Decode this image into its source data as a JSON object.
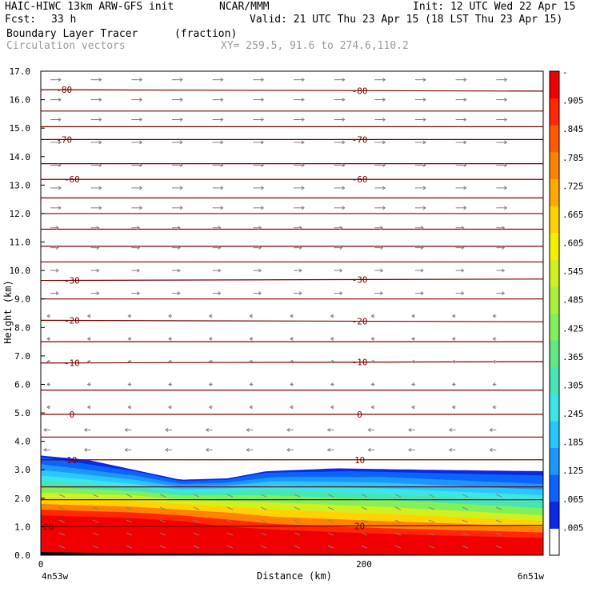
{
  "header": {
    "model": "HAIC-HIWC 13km ARW-GFS init",
    "org": "NCAR/MMM",
    "init": "Init: 12 UTC Wed 22 Apr 15",
    "fcst_label": "Fcst:",
    "fcst_value": "33 h",
    "valid": "Valid: 21 UTC Thu 23 Apr 15 (18 LST Thu 23 Apr 15)",
    "field": "Boundary Layer Tracer",
    "field_units": "(fraction)",
    "overlay": "Circulation vectors",
    "xy": "XY= 259.5, 91.6 to 274.6,110.2"
  },
  "x_axis": {
    "title": "Distance (km)",
    "left_endpoint": "4n53w",
    "right_endpoint": "6n51w",
    "ticks": [
      {
        "label": "0",
        "value": 0
      },
      {
        "label": "200",
        "value": 200
      }
    ]
  },
  "colors": {
    "contour_line": "#7a0000",
    "vector": "#808080",
    "palette": [
      "#ffffff",
      "#0a28e6",
      "#0a64ff",
      "#1e96ff",
      "#28c8ff",
      "#3ce6e6",
      "#46e6b4",
      "#64e682",
      "#82f05a",
      "#aaf03c",
      "#d2f01e",
      "#f5f000",
      "#ffd200",
      "#ffaa00",
      "#ff8200",
      "#ff5a00",
      "#ff2800",
      "#f00000"
    ]
  },
  "chart_data": {
    "type": "heatmap",
    "title": "Boundary Layer Tracer",
    "units": "(fraction)",
    "xlabel": "Distance (km)",
    "ylabel": "Height (km)",
    "xlim": [
      0,
      323
    ],
    "ylim": [
      0,
      17
    ],
    "y_ticks": [
      "0.0",
      "1.0",
      "2.0",
      "3.0",
      "4.0",
      "5.0",
      "6.0",
      "7.0",
      "8.0",
      "9.0",
      "10.0",
      "11.0",
      "12.0",
      "13.0",
      "14.0",
      "15.0",
      "16.0",
      "17.0"
    ],
    "colorbar_labels": [
      ".005",
      ".065",
      ".125",
      ".185",
      ".245",
      ".305",
      ".365",
      ".425",
      ".485",
      ".545",
      ".605",
      ".665",
      ".725",
      ".785",
      ".845",
      ".905",
      "-"
    ],
    "tracer_top_km": [
      [
        0,
        3.5
      ],
      [
        30,
        3.35
      ],
      [
        60,
        3.0
      ],
      [
        90,
        2.65
      ],
      [
        120,
        2.7
      ],
      [
        145,
        2.95
      ],
      [
        190,
        3.05
      ],
      [
        250,
        3.0
      ],
      [
        323,
        2.95
      ]
    ],
    "tracer_layers": [
      {
        "value": 0.065,
        "top_km": [
          [
            0,
            3.45
          ],
          [
            60,
            2.95
          ],
          [
            90,
            2.6
          ],
          [
            120,
            2.65
          ],
          [
            145,
            2.9
          ],
          [
            200,
            2.95
          ],
          [
            323,
            2.8
          ]
        ]
      },
      {
        "value": 0.125,
        "top_km": [
          [
            0,
            3.2
          ],
          [
            60,
            2.8
          ],
          [
            90,
            2.5
          ],
          [
            120,
            2.55
          ],
          [
            150,
            2.75
          ],
          [
            220,
            2.75
          ],
          [
            323,
            2.5
          ]
        ]
      },
      {
        "value": 0.185,
        "top_km": [
          [
            0,
            3.0
          ],
          [
            60,
            2.65
          ],
          [
            90,
            2.4
          ],
          [
            120,
            2.45
          ],
          [
            150,
            2.6
          ],
          [
            220,
            2.55
          ],
          [
            323,
            2.3
          ]
        ]
      },
      {
        "value": 0.245,
        "top_km": [
          [
            0,
            2.8
          ],
          [
            60,
            2.5
          ],
          [
            90,
            2.3
          ],
          [
            120,
            2.35
          ],
          [
            150,
            2.45
          ],
          [
            220,
            2.35
          ],
          [
            323,
            2.1
          ]
        ]
      },
      {
        "value": 0.305,
        "top_km": [
          [
            0,
            2.6
          ],
          [
            60,
            2.4
          ],
          [
            90,
            2.2
          ],
          [
            120,
            2.25
          ],
          [
            150,
            2.3
          ],
          [
            220,
            2.15
          ],
          [
            323,
            1.9
          ]
        ]
      },
      {
        "value": 0.425,
        "top_km": [
          [
            0,
            2.4
          ],
          [
            60,
            2.25
          ],
          [
            90,
            2.1
          ],
          [
            120,
            2.1
          ],
          [
            150,
            2.1
          ],
          [
            220,
            1.95
          ],
          [
            323,
            1.65
          ]
        ]
      },
      {
        "value": 0.545,
        "top_km": [
          [
            0,
            2.2
          ],
          [
            60,
            2.1
          ],
          [
            90,
            1.95
          ],
          [
            120,
            1.9
          ],
          [
            150,
            1.85
          ],
          [
            220,
            1.7
          ],
          [
            323,
            1.4
          ]
        ]
      },
      {
        "value": 0.665,
        "top_km": [
          [
            0,
            2.0
          ],
          [
            60,
            1.9
          ],
          [
            90,
            1.8
          ],
          [
            120,
            1.7
          ],
          [
            150,
            1.6
          ],
          [
            220,
            1.45
          ],
          [
            323,
            1.2
          ]
        ]
      },
      {
        "value": 0.785,
        "top_km": [
          [
            0,
            1.8
          ],
          [
            60,
            1.7
          ],
          [
            90,
            1.6
          ],
          [
            120,
            1.5
          ],
          [
            150,
            1.35
          ],
          [
            220,
            1.2
          ],
          [
            323,
            1.0
          ]
        ]
      },
      {
        "value": 0.905,
        "top_km": [
          [
            0,
            1.6
          ],
          [
            60,
            1.5
          ],
          [
            90,
            1.4
          ],
          [
            120,
            1.25
          ],
          [
            150,
            1.1
          ],
          [
            220,
            0.95
          ],
          [
            323,
            0.8
          ]
        ]
      },
      {
        "value": 0.965,
        "top_km": [
          [
            0,
            1.4
          ],
          [
            60,
            1.3
          ],
          [
            90,
            1.2
          ],
          [
            120,
            1.0
          ],
          [
            150,
            0.9
          ],
          [
            220,
            0.75
          ],
          [
            323,
            0.6
          ]
        ]
      }
    ],
    "isotherms": [
      {
        "label": "-80",
        "km_left": 16.35,
        "km_right": 16.3,
        "label_x": [
          15,
          205
        ]
      },
      {
        "label": "-70",
        "km_left": 14.6,
        "km_right": 14.6,
        "label_x": [
          15,
          205
        ]
      },
      {
        "label": "-60",
        "km_left": 13.2,
        "km_right": 13.2,
        "label_x": [
          20,
          205
        ]
      },
      {
        "label": "-30",
        "km_left": 9.65,
        "km_right": 9.7,
        "label_x": [
          20,
          205
        ]
      },
      {
        "label": "-20",
        "km_left": 8.25,
        "km_right": 8.2,
        "label_x": [
          20,
          205
        ]
      },
      {
        "label": "-10",
        "km_left": 6.75,
        "km_right": 6.8,
        "label_x": [
          20,
          205
        ]
      },
      {
        "label": "0",
        "km_left": 4.95,
        "km_right": 4.95,
        "label_x": [
          20,
          205
        ]
      },
      {
        "label": "10",
        "km_left": 3.35,
        "km_right": 3.35,
        "label_x": [
          20,
          205
        ]
      },
      {
        "label": "20",
        "km_left": 1.0,
        "km_right": 1.05,
        "label_x": [
          5,
          205
        ]
      }
    ],
    "unlabeled_isotherms_km": [
      15.6,
      15.05,
      13.75,
      12.55,
      12.0,
      11.45,
      10.85,
      10.3,
      9.0,
      7.5,
      5.8,
      4.15,
      2.4,
      1.95
    ],
    "wind_vector_rows_km": [
      16.7,
      16.0,
      15.3,
      14.5,
      13.7,
      12.9,
      12.2,
      11.5,
      10.8,
      10.0,
      9.2,
      8.4,
      7.6,
      6.8,
      6.0,
      5.2,
      4.4,
      3.7
    ]
  }
}
